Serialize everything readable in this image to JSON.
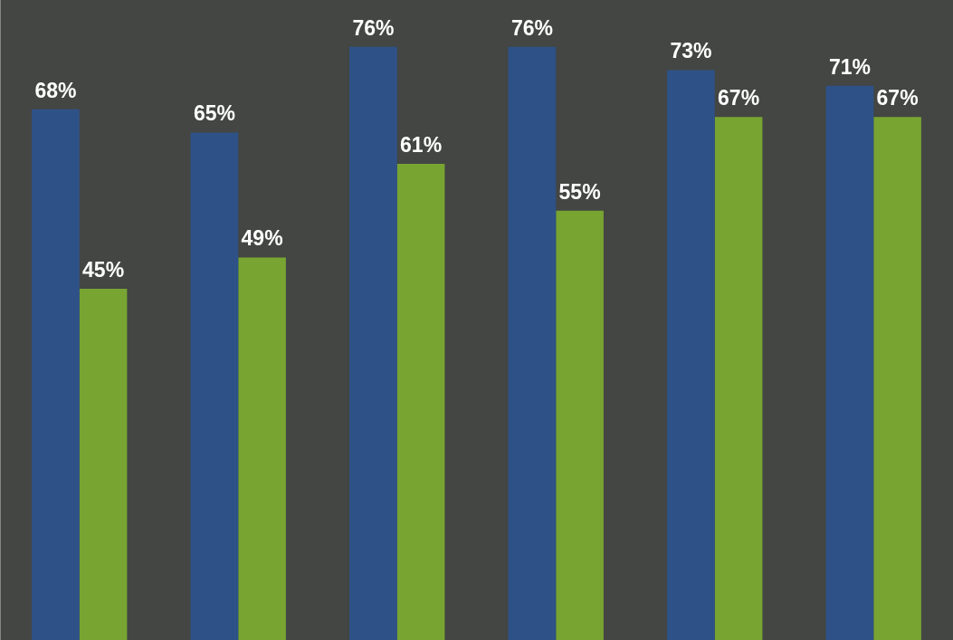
{
  "chart_data": {
    "type": "bar",
    "categories": [
      null,
      null,
      null,
      null,
      null,
      null
    ],
    "series": [
      {
        "color": "#2e5288",
        "values": [
          68,
          65,
          76,
          76,
          73,
          71
        ],
        "value_labels": [
          "68%",
          "65%",
          "76%",
          "76%",
          "73%",
          "71%"
        ]
      },
      {
        "color": "#78a432",
        "values": [
          45,
          49,
          61,
          55,
          67,
          67
        ],
        "value_labels": [
          "45%",
          "49%",
          "61%",
          "55%",
          "67%",
          "67%"
        ]
      }
    ],
    "ylim": [
      0,
      82
    ],
    "grid": false,
    "data_labels": true,
    "tick_labels": false
  }
}
